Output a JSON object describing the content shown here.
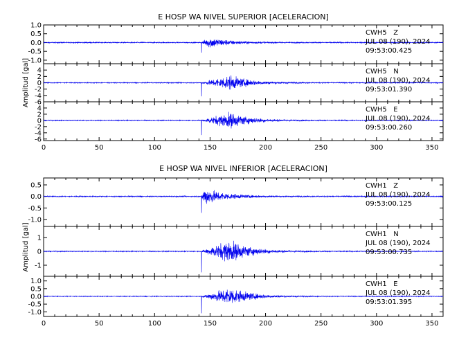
{
  "chart_data": [
    {
      "type": "line",
      "title": "E HOSP WA NIVEL SUPERIOR [ACELERACION]",
      "ylabel": "Amplitud [gal]",
      "xlim": [
        0,
        360
      ],
      "xticks": [
        "0",
        "50",
        "100",
        "150",
        "200",
        "250",
        "300",
        "350"
      ],
      "traces": [
        {
          "name": "CWH5   Z",
          "date": "JUL 08 (190), 2024",
          "time": "09:53:00.425",
          "ylim": [
            -1.2,
            1.0
          ],
          "yticks": [
            "1.0",
            "0.5",
            "0.0",
            "-0.5",
            "-1.0"
          ],
          "onset": 142,
          "peak_time": 150,
          "peak_amp": 0.6,
          "noise": 0.06,
          "color": "#0000ee"
        },
        {
          "name": "CWH5   N",
          "date": "JUL 08 (190), 2024",
          "time": "09:53:01.390",
          "ylim": [
            -6,
            6
          ],
          "yticks": [
            "4",
            "2",
            "0",
            "-2",
            "-4",
            "-6"
          ],
          "onset": 142,
          "peak_time": 168,
          "peak_amp": 4.5,
          "noise": 0.3,
          "color": "#0000ee"
        },
        {
          "name": "CWH5   E",
          "date": "JUL 08 (190), 2024",
          "time": "09:53:00.260",
          "ylim": [
            -6.5,
            6
          ],
          "yticks": [
            "4",
            "2",
            "0",
            "-2",
            "-4",
            "-6"
          ],
          "onset": 142,
          "peak_time": 168,
          "peak_amp": 5.0,
          "noise": 0.3,
          "color": "#0000ee"
        }
      ]
    },
    {
      "type": "line",
      "title": "E HOSP WA NIVEL INFERIOR [ACELERACION]",
      "ylabel": "Amplitud [gal]",
      "xlim": [
        0,
        360
      ],
      "xticks": [
        "0",
        "50",
        "100",
        "150",
        "200",
        "250",
        "300",
        "350"
      ],
      "traces": [
        {
          "name": "CWH1   Z",
          "date": "JUL 08 (190), 2024",
          "time": "09:53:00.125",
          "ylim": [
            -1.3,
            0.8
          ],
          "yticks": [
            "0.5",
            "0.0",
            "-0.5",
            "-1.0"
          ],
          "onset": 142,
          "peak_time": 145,
          "peak_amp": 0.75,
          "noise": 0.05,
          "color": "#0000ee"
        },
        {
          "name": "CWH1   N",
          "date": "JUL 08 (190), 2024",
          "time": "09:53:00.735",
          "ylim": [
            -1.8,
            1.8
          ],
          "yticks": [
            "1",
            "0",
            "-1"
          ],
          "onset": 142,
          "peak_time": 168,
          "peak_amp": 1.6,
          "noise": 0.07,
          "color": "#0000ee"
        },
        {
          "name": "CWH1   E",
          "date": "JUL 08 (190), 2024",
          "time": "09:53:01.395",
          "ylim": [
            -1.3,
            1.3
          ],
          "yticks": [
            "1.0",
            "0.5",
            "0.0",
            "-0.5",
            "-1.0"
          ],
          "onset": 142,
          "peak_time": 168,
          "peak_amp": 1.15,
          "noise": 0.05,
          "color": "#0000ee"
        }
      ]
    }
  ]
}
